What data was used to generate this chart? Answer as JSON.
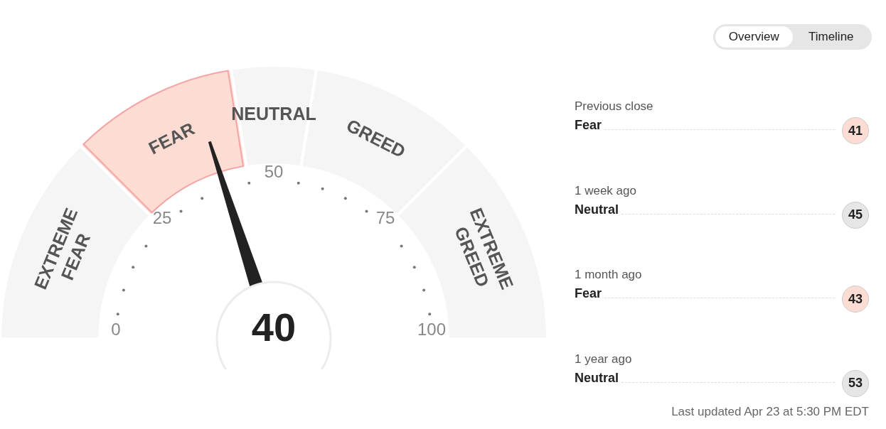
{
  "chart_data": [
    {
      "type": "donut",
      "categories": [
        "EXTREME FEAR",
        "FEAR",
        "NEUTRAL",
        "GREED",
        "EXTREME GREED"
      ],
      "values": [
        25,
        20,
        10,
        20,
        25
      ],
      "colors": [
        "#f5f5f5",
        "#fddcd3",
        "#f5f5f5",
        "#f5f5f5",
        "#f5f5f5"
      ],
      "needle": "FEAR",
      "annotations": [
        "0",
        "25",
        "50",
        "75",
        "100",
        {
          "text": "40"
        }
      ]
    },
    {
      "type": "other",
      "categories": [
        "Previous close",
        "1 week ago",
        "1 month ago",
        "1 year ago"
      ],
      "values": [
        41,
        45,
        43,
        53
      ],
      "data_labels": true,
      "colors": [
        "#fddcd3",
        "#e6e6e6",
        "#fddcd3",
        "#e6e6e6"
      ],
      "annotations": [
        "Overview",
        "Timeline",
        {
          "text": "Fear",
          "x": "Previous close"
        },
        {
          "text": "Neutral",
          "x": "1 week ago"
        },
        {
          "text": "Fear",
          "x": "1 month ago"
        },
        {
          "text": "Neutral",
          "x": "1 year ago"
        },
        "Last updated Apr 23 at 5:30 PM EDT"
      ]
    }
  ]
}
